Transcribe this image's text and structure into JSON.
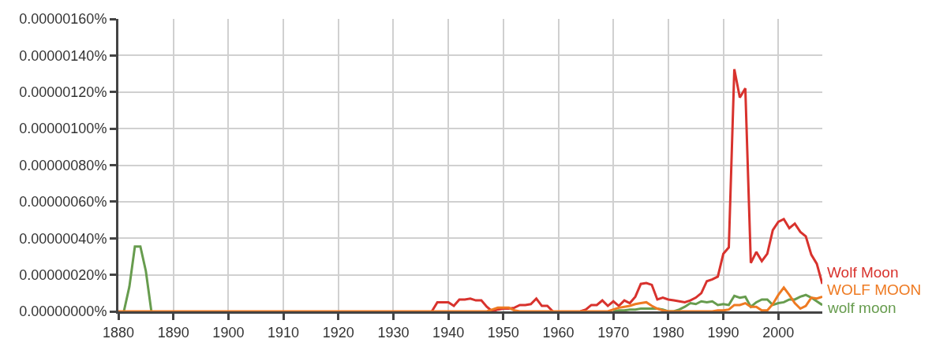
{
  "chart_data": {
    "type": "line",
    "x": [
      1880,
      1881,
      1882,
      1883,
      1884,
      1885,
      1886,
      1887,
      1888,
      1889,
      1890,
      1891,
      1892,
      1893,
      1894,
      1895,
      1896,
      1897,
      1898,
      1899,
      1900,
      1901,
      1902,
      1903,
      1904,
      1905,
      1906,
      1907,
      1908,
      1909,
      1910,
      1911,
      1912,
      1913,
      1914,
      1915,
      1916,
      1917,
      1918,
      1919,
      1920,
      1921,
      1922,
      1923,
      1924,
      1925,
      1926,
      1927,
      1928,
      1929,
      1930,
      1931,
      1932,
      1933,
      1934,
      1935,
      1936,
      1937,
      1938,
      1939,
      1940,
      1941,
      1942,
      1943,
      1944,
      1945,
      1946,
      1947,
      1948,
      1949,
      1950,
      1951,
      1952,
      1953,
      1954,
      1955,
      1956,
      1957,
      1958,
      1959,
      1960,
      1961,
      1962,
      1963,
      1964,
      1965,
      1966,
      1967,
      1968,
      1969,
      1970,
      1971,
      1972,
      1973,
      1974,
      1975,
      1976,
      1977,
      1978,
      1979,
      1980,
      1981,
      1982,
      1983,
      1984,
      1985,
      1986,
      1987,
      1988,
      1989,
      1990,
      1991,
      1992,
      1993,
      1994,
      1995,
      1996,
      1997,
      1998,
      1999,
      2000,
      2001,
      2002,
      2003,
      2004,
      2005,
      2006,
      2007,
      2008
    ],
    "series": [
      {
        "name": "Wolf Moon",
        "color": "#d8322d",
        "values": [
          null,
          null,
          null,
          null,
          null,
          null,
          null,
          null,
          null,
          null,
          null,
          null,
          null,
          null,
          null,
          null,
          null,
          null,
          null,
          null,
          null,
          null,
          null,
          null,
          null,
          null,
          null,
          null,
          null,
          null,
          null,
          null,
          null,
          null,
          null,
          null,
          null,
          null,
          null,
          null,
          null,
          null,
          null,
          null,
          null,
          null,
          null,
          null,
          null,
          null,
          null,
          null,
          null,
          null,
          null,
          null,
          null,
          0,
          5e-08,
          5e-08,
          5e-08,
          3e-08,
          6.5e-08,
          6.5e-08,
          7e-08,
          6e-08,
          6e-08,
          2.5e-08,
          0,
          1e-08,
          1.5e-08,
          1.5e-08,
          2e-08,
          3.5e-08,
          3.5e-08,
          4e-08,
          7e-08,
          3e-08,
          3e-08,
          0,
          null,
          null,
          null,
          null,
          0,
          1e-08,
          3.5e-08,
          3.5e-08,
          6e-08,
          3e-08,
          5.5e-08,
          3e-08,
          6e-08,
          4.5e-08,
          8e-08,
          1.5e-07,
          1.55e-07,
          1.45e-07,
          6.5e-08,
          7.5e-08,
          6.5e-08,
          6e-08,
          5.5e-08,
          5e-08,
          6e-08,
          7.5e-08,
          1e-07,
          1.65e-07,
          1.75e-07,
          1.9e-07,
          3.15e-07,
          3.5e-07,
          1.325e-06,
          1.17e-06,
          1.22e-06,
          2.65e-07,
          3.25e-07,
          2.75e-07,
          3.15e-07,
          4.45e-07,
          4.9e-07,
          5.05e-07,
          4.55e-07,
          4.8e-07,
          4.35e-07,
          4.1e-07,
          3.1e-07,
          2.6e-07,
          1.5e-07
        ]
      },
      {
        "name": "WOLF MOON",
        "color": "#ee7a22",
        "values": [
          0,
          0,
          0,
          0,
          0,
          0,
          0,
          0,
          0,
          0,
          0,
          0,
          0,
          0,
          0,
          0,
          0,
          0,
          0,
          0,
          0,
          0,
          0,
          0,
          0,
          0,
          0,
          0,
          0,
          0,
          0,
          0,
          0,
          0,
          0,
          0,
          0,
          0,
          0,
          0,
          0,
          0,
          0,
          0,
          0,
          0,
          0,
          0,
          0,
          0,
          0,
          0,
          0,
          0,
          0,
          0,
          0,
          0,
          0,
          0,
          0,
          0,
          0,
          0,
          0,
          0,
          0,
          0,
          1e-08,
          2e-08,
          2e-08,
          2e-08,
          5e-09,
          0,
          0,
          0,
          0,
          0,
          0,
          0,
          0,
          0,
          0,
          0,
          0,
          0,
          0,
          0,
          0,
          0,
          1e-08,
          2e-08,
          2.5e-08,
          3e-08,
          4e-08,
          4.5e-08,
          5e-08,
          3e-08,
          1.5e-08,
          5e-09,
          0,
          0,
          0,
          0,
          0,
          0,
          0,
          0,
          0,
          5e-09,
          5e-09,
          1e-08,
          3.5e-08,
          3.5e-08,
          4.5e-08,
          2.5e-08,
          2.5e-08,
          5e-09,
          5e-09,
          4e-08,
          9e-08,
          1.3e-07,
          9e-08,
          4.5e-08,
          1.5e-08,
          3e-08,
          7.5e-08,
          7e-08,
          8e-08
        ]
      },
      {
        "name": "wolf moon",
        "color": "#679c4e",
        "values": [
          null,
          0,
          1.35e-07,
          3.55e-07,
          3.55e-07,
          2.2e-07,
          0,
          null,
          null,
          null,
          null,
          null,
          null,
          null,
          null,
          null,
          null,
          null,
          null,
          null,
          null,
          null,
          null,
          null,
          null,
          null,
          null,
          null,
          null,
          null,
          null,
          null,
          null,
          null,
          null,
          null,
          null,
          null,
          null,
          null,
          null,
          null,
          null,
          null,
          null,
          null,
          null,
          null,
          null,
          null,
          null,
          null,
          null,
          null,
          null,
          null,
          null,
          null,
          null,
          null,
          null,
          null,
          null,
          null,
          null,
          null,
          null,
          null,
          null,
          null,
          null,
          null,
          null,
          null,
          null,
          null,
          null,
          null,
          null,
          null,
          null,
          null,
          null,
          null,
          null,
          null,
          null,
          null,
          null,
          null,
          0,
          5e-09,
          5e-09,
          1e-08,
          1e-08,
          1.5e-08,
          1.5e-08,
          1.5e-08,
          1.5e-08,
          1e-08,
          0,
          0,
          1e-08,
          2.5e-08,
          4.5e-08,
          4e-08,
          5.5e-08,
          5e-08,
          5.5e-08,
          3.5e-08,
          4e-08,
          3.5e-08,
          8.5e-08,
          7.5e-08,
          8e-08,
          2.5e-08,
          5e-08,
          6.5e-08,
          6.5e-08,
          3.5e-08,
          4.5e-08,
          5e-08,
          6.5e-08,
          6.5e-08,
          8e-08,
          9e-08,
          7.5e-08,
          5.5e-08,
          3.5e-08
        ]
      }
    ],
    "xlim": [
      1880,
      2008
    ],
    "xticks": [
      1880,
      1890,
      1900,
      1910,
      1920,
      1930,
      1940,
      1950,
      1960,
      1970,
      1980,
      1990,
      2000
    ],
    "ylim": [
      0,
      1.6e-06
    ],
    "yticks": [
      {
        "value": 0,
        "label": "0.00000000%"
      },
      {
        "value": 2e-07,
        "label": "0.00000020%"
      },
      {
        "value": 4e-07,
        "label": "0.00000040%"
      },
      {
        "value": 6e-07,
        "label": "0.00000060%"
      },
      {
        "value": 8e-07,
        "label": "0.00000080%"
      },
      {
        "value": 1e-06,
        "label": "0.00000100%"
      },
      {
        "value": 1.2e-06,
        "label": "0.00000120%"
      },
      {
        "value": 1.4e-06,
        "label": "0.00000140%"
      },
      {
        "value": 1.6e-06,
        "label": "0.00000160%"
      }
    ],
    "grid": true,
    "legend": false,
    "marker": "none",
    "line_style": "solid"
  }
}
